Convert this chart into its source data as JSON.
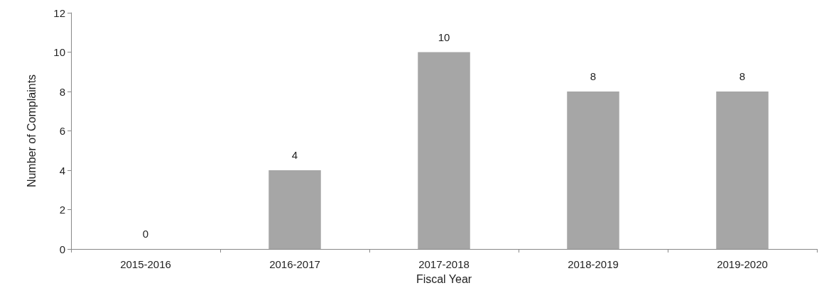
{
  "chart_data": {
    "type": "bar",
    "xlabel": "Fiscal Year",
    "ylabel": "Number of Complaints",
    "categories": [
      "2015-2016",
      "2016-2017",
      "2017-2018",
      "2018-2019",
      "2019-2020"
    ],
    "values": [
      0,
      4,
      10,
      8,
      8
    ],
    "color": "#a6a6a6",
    "ylim": [
      0,
      12
    ],
    "yticks": [
      0,
      2,
      4,
      6,
      8,
      10,
      12
    ],
    "grid": false,
    "data_labels": true
  }
}
